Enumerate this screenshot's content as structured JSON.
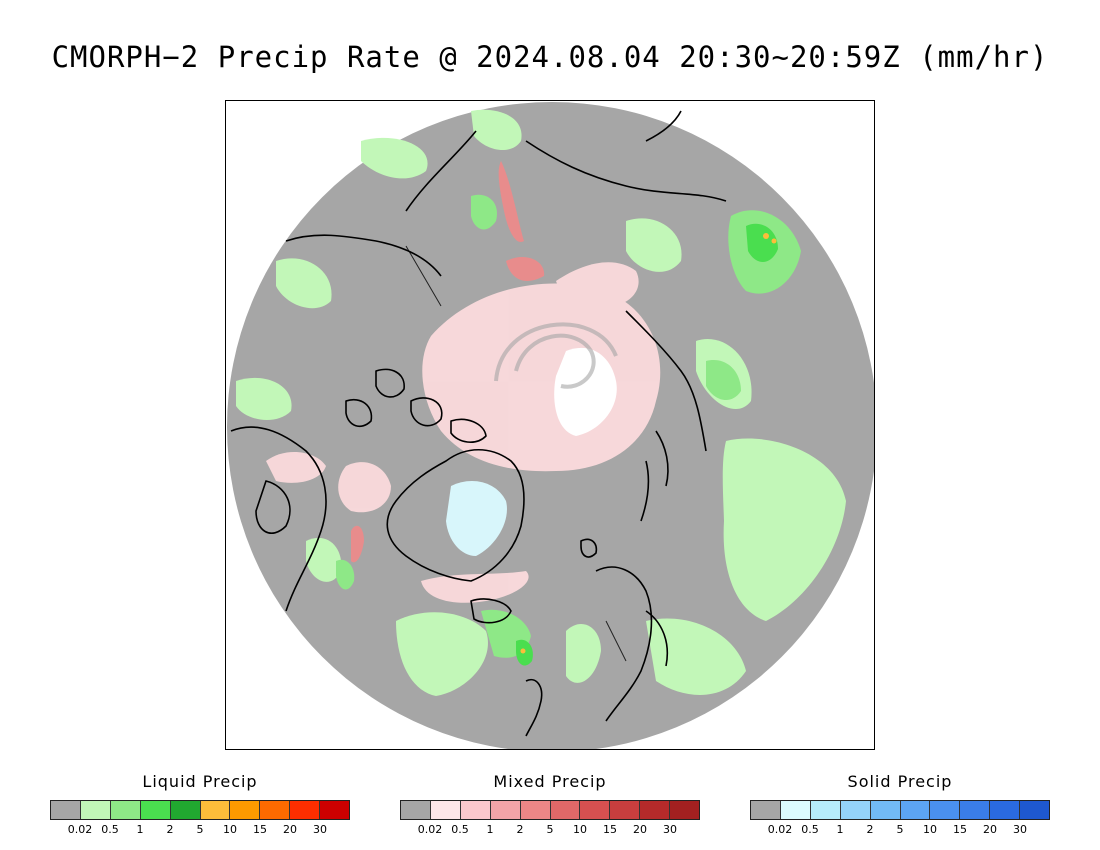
{
  "title": "CMORPH−2 Precip Rate @ 2024.08.04 20:30~20:59Z (mm/hr)",
  "map": {
    "projection": "north-polar-stereographic",
    "background_color": "#a6a6a6",
    "coastline_color": "#000000"
  },
  "legends": [
    {
      "name": "Liquid Precip",
      "colors": [
        "#a6a6a6",
        "#c2f7b8",
        "#8ee887",
        "#4ade4f",
        "#21a830",
        "#fdbd3a",
        "#fd9a00",
        "#fd6a00",
        "#fd2e00",
        "#cc0000"
      ],
      "ticks": [
        "0.02",
        "0.5",
        "1",
        "2",
        "5",
        "10",
        "15",
        "20",
        "30"
      ]
    },
    {
      "name": "Mixed Precip",
      "colors": [
        "#a6a6a6",
        "#fde6e8",
        "#fbc8cc",
        "#f3a4a8",
        "#ec8686",
        "#e06868",
        "#d65050",
        "#c83e3e",
        "#b52a2a",
        "#a32020"
      ],
      "ticks": [
        "0.02",
        "0.5",
        "1",
        "2",
        "5",
        "10",
        "15",
        "20",
        "30"
      ]
    },
    {
      "name": "Solid Precip",
      "colors": [
        "#a6a6a6",
        "#dcfcfe",
        "#b6ecfb",
        "#94d2fa",
        "#72baf6",
        "#5ca4f2",
        "#4a90ee",
        "#3a7de8",
        "#2a6ae0",
        "#1e58d0"
      ],
      "ticks": [
        "0.02",
        "0.5",
        "1",
        "2",
        "5",
        "10",
        "15",
        "20",
        "30"
      ]
    }
  ]
}
